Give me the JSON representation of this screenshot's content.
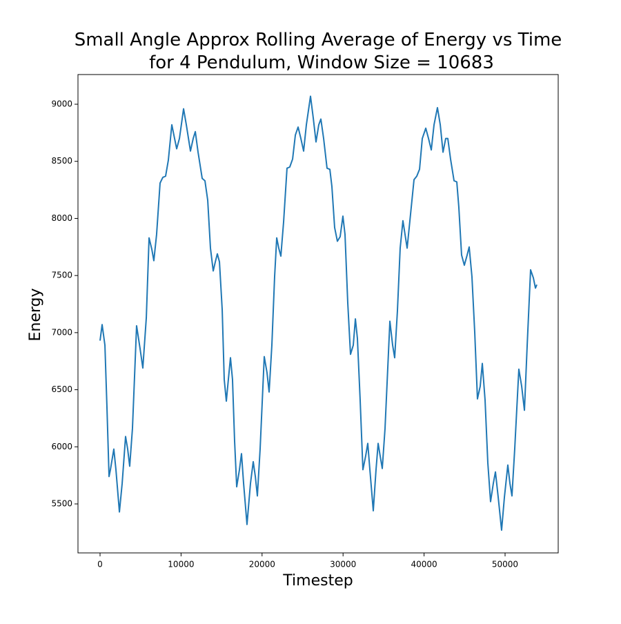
{
  "chart_data": {
    "type": "line",
    "title": [
      "Small Angle Approx Rolling Average of Energy vs Time",
      "for 4 Pendulum, Window Size = 10683"
    ],
    "x_label": "Timestep",
    "y_label": "Energy",
    "xlim": [
      -2726,
      56560
    ],
    "ylim": [
      5071,
      9260
    ],
    "xticks": [
      0,
      10000,
      20000,
      30000,
      40000,
      50000
    ],
    "yticks": [
      5500,
      6000,
      6500,
      7000,
      7500,
      8000,
      8500,
      9000
    ],
    "grid": false,
    "series": [
      {
        "color": "#1f77b4",
        "x": [
          0,
          255,
          600,
          850,
          1110,
          1280,
          1700,
          1960,
          2390,
          2730,
          3150,
          3410,
          3660,
          4000,
          4510,
          4940,
          5280,
          5710,
          6050,
          6390,
          6640,
          6980,
          7410,
          7750,
          8090,
          8430,
          8860,
          9200,
          9460,
          9800,
          10310,
          10650,
          11160,
          11500,
          11760,
          12100,
          12610,
          12950,
          13290,
          13630,
          13970,
          14230,
          14480,
          14740,
          15080,
          15330,
          15590,
          15840,
          16100,
          16350,
          16610,
          16870,
          17210,
          17460,
          17720,
          18140,
          18570,
          18910,
          19170,
          19420,
          19760,
          20270,
          20610,
          20870,
          21210,
          21550,
          21810,
          22060,
          22320,
          22660,
          23080,
          23420,
          23770,
          24110,
          24450,
          24790,
          25130,
          25470,
          25980,
          26320,
          26660,
          27000,
          27260,
          27600,
          28020,
          28370,
          28620,
          28960,
          29300,
          29640,
          29980,
          30240,
          30580,
          30920,
          31260,
          31520,
          31770,
          32110,
          32450,
          32790,
          33050,
          33310,
          33730,
          34070,
          34330,
          34580,
          34840,
          35180,
          35780,
          36120,
          36370,
          36710,
          37050,
          37390,
          37650,
          37910,
          38250,
          38760,
          39100,
          39440,
          39780,
          40210,
          40550,
          40890,
          41230,
          41650,
          42000,
          42340,
          42670,
          42930,
          43270,
          43700,
          44040,
          44290,
          44630,
          44970,
          45320,
          45570,
          45910,
          46250,
          46590,
          46930,
          47190,
          47530,
          47870,
          48210,
          48550,
          48810,
          49150,
          49570,
          49920,
          50340,
          50600,
          50850,
          51190,
          51700,
          52050,
          52390,
          52730,
          53150,
          53490,
          53750,
          53920
        ],
        "values": [
          6930,
          7070,
          6890,
          6350,
          5740,
          5800,
          5980,
          5800,
          5430,
          5680,
          6090,
          5980,
          5830,
          6160,
          7060,
          6860,
          6690,
          7130,
          7830,
          7730,
          7630,
          7860,
          8310,
          8360,
          8370,
          8510,
          8820,
          8700,
          8610,
          8700,
          8960,
          8820,
          8590,
          8700,
          8760,
          8580,
          8350,
          8330,
          8160,
          7740,
          7540,
          7620,
          7690,
          7620,
          7200,
          6590,
          6400,
          6590,
          6780,
          6590,
          6050,
          5650,
          5800,
          5940,
          5680,
          5320,
          5680,
          5870,
          5740,
          5570,
          5980,
          6790,
          6650,
          6480,
          6890,
          7490,
          7830,
          7740,
          7670,
          7970,
          8440,
          8450,
          8520,
          8730,
          8800,
          8700,
          8590,
          8820,
          9070,
          8880,
          8670,
          8820,
          8870,
          8700,
          8440,
          8430,
          8280,
          7920,
          7800,
          7840,
          8020,
          7860,
          7260,
          6810,
          6890,
          7120,
          6950,
          6410,
          5800,
          5920,
          6030,
          5800,
          5440,
          5800,
          6030,
          5920,
          5810,
          6160,
          7100,
          6890,
          6780,
          7190,
          7740,
          7980,
          7860,
          7740,
          7980,
          8340,
          8370,
          8430,
          8700,
          8790,
          8700,
          8600,
          8820,
          8970,
          8820,
          8580,
          8700,
          8700,
          8520,
          8330,
          8320,
          8100,
          7680,
          7590,
          7680,
          7750,
          7490,
          7010,
          6420,
          6530,
          6730,
          6410,
          5860,
          5520,
          5680,
          5780,
          5560,
          5270,
          5560,
          5840,
          5680,
          5570,
          5980,
          6680,
          6530,
          6320,
          6890,
          7550,
          7480,
          7390,
          7420
        ]
      }
    ]
  }
}
